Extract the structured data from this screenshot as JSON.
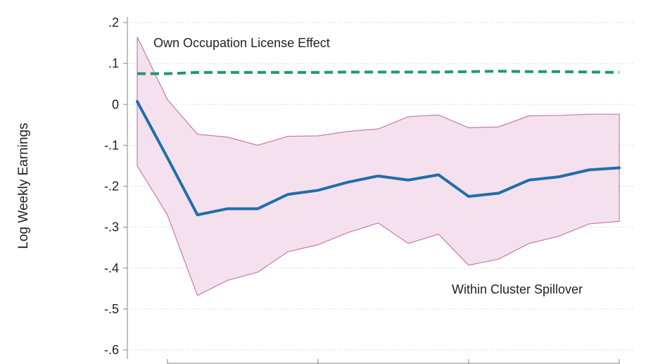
{
  "chart_data": {
    "type": "line",
    "title": "",
    "xlabel": "",
    "ylabel": "Log Weekly Earnings",
    "ylim": [
      -0.6,
      0.2
    ],
    "yticks": [
      0.2,
      0.1,
      0,
      -0.1,
      -0.2,
      -0.3,
      -0.4,
      -0.5,
      -0.6
    ],
    "ytick_labels": [
      ".2",
      ".1",
      "0",
      "-.1",
      "-.2",
      "-.3",
      "-.4",
      "-.5",
      "-.6"
    ],
    "x": [
      0,
      1,
      2,
      3,
      4,
      5,
      6,
      7,
      8,
      9,
      10,
      11,
      12,
      13,
      14,
      15,
      16
    ],
    "xlim": [
      0,
      16
    ],
    "x_tick_positions": [
      1,
      6,
      11,
      16
    ],
    "grid": "horizontal dotted",
    "series": [
      {
        "name": "Own Occupation License Effect",
        "style": "dashed",
        "color": "#1f9a6a",
        "values": [
          0.075,
          0.075,
          0.078,
          0.078,
          0.078,
          0.078,
          0.078,
          0.079,
          0.079,
          0.079,
          0.079,
          0.08,
          0.081,
          0.08,
          0.08,
          0.079,
          0.078
        ]
      },
      {
        "name": "Within Cluster Spillover",
        "style": "solid",
        "color": "#1f6fab",
        "values": [
          0.007,
          -0.13,
          -0.27,
          -0.255,
          -0.255,
          -0.22,
          -0.21,
          -0.19,
          -0.175,
          -0.185,
          -0.172,
          -0.225,
          -0.217,
          -0.185,
          -0.177,
          -0.16,
          -0.155
        ],
        "ci_upper": [
          0.165,
          0.012,
          -0.073,
          -0.08,
          -0.1,
          -0.078,
          -0.077,
          -0.066,
          -0.06,
          -0.03,
          -0.026,
          -0.057,
          -0.055,
          -0.028,
          -0.027,
          -0.024,
          -0.024
        ],
        "ci_lower": [
          -0.15,
          -0.27,
          -0.467,
          -0.43,
          -0.41,
          -0.36,
          -0.343,
          -0.313,
          -0.29,
          -0.34,
          -0.317,
          -0.393,
          -0.378,
          -0.34,
          -0.322,
          -0.292,
          -0.286
        ],
        "band_fill": "#f5e1ee",
        "band_stroke": "#c878ad"
      }
    ],
    "annotations": [
      "Own Occupation License Effect",
      "Within Cluster Spillover"
    ]
  }
}
